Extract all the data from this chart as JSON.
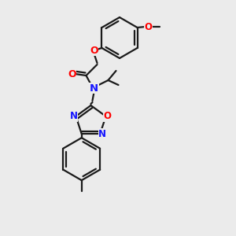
{
  "background_color": "#ebebeb",
  "bond_color": "#1a1a1a",
  "atom_colors": {
    "O": "#ff0000",
    "N": "#1414ff",
    "C": "#1a1a1a"
  },
  "figsize": [
    3.0,
    3.0
  ],
  "dpi": 100,
  "xlim": [
    0,
    300
  ],
  "ylim": [
    0,
    300
  ]
}
